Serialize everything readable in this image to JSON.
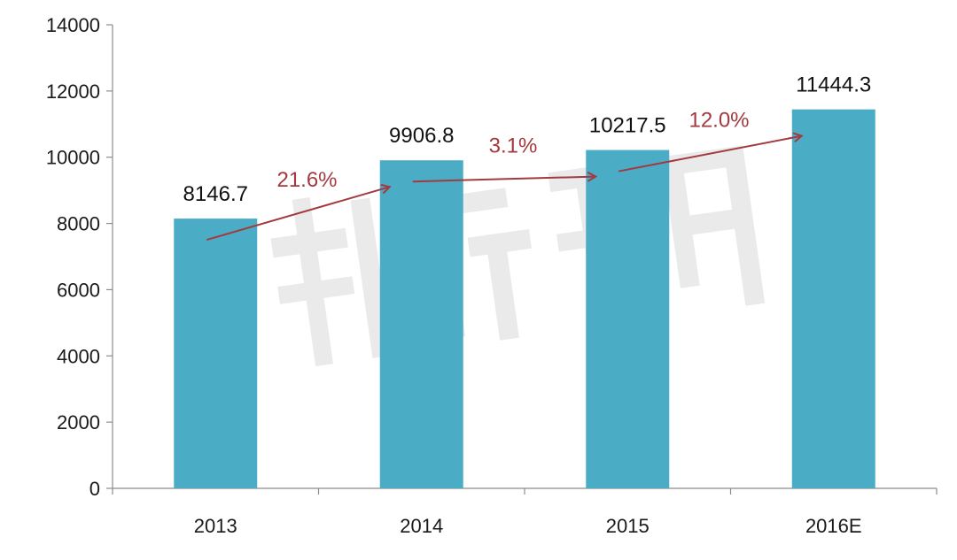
{
  "chart_data": {
    "type": "bar",
    "categories": [
      "2013",
      "2014",
      "2015",
      "2016E"
    ],
    "values": [
      8146.7,
      9906.8,
      10217.5,
      11444.3
    ],
    "value_labels": [
      "8146.7",
      "9906.8",
      "10217.5",
      "11444.3"
    ],
    "ylim": [
      0,
      14000
    ],
    "yticks": [
      "0",
      "2000",
      "4000",
      "6000",
      "8000",
      "10000",
      "12000",
      "14000"
    ],
    "grid": false,
    "bar_color": "#4bacc6",
    "growth_annotations": [
      {
        "from": "2013",
        "to": "2014",
        "label": "21.6%"
      },
      {
        "from": "2014",
        "to": "2015",
        "label": "3.1%"
      },
      {
        "from": "2015",
        "to": "2016E",
        "label": "12.0%"
      }
    ],
    "growth_color": "#a33a3f",
    "watermark": "新康界"
  }
}
